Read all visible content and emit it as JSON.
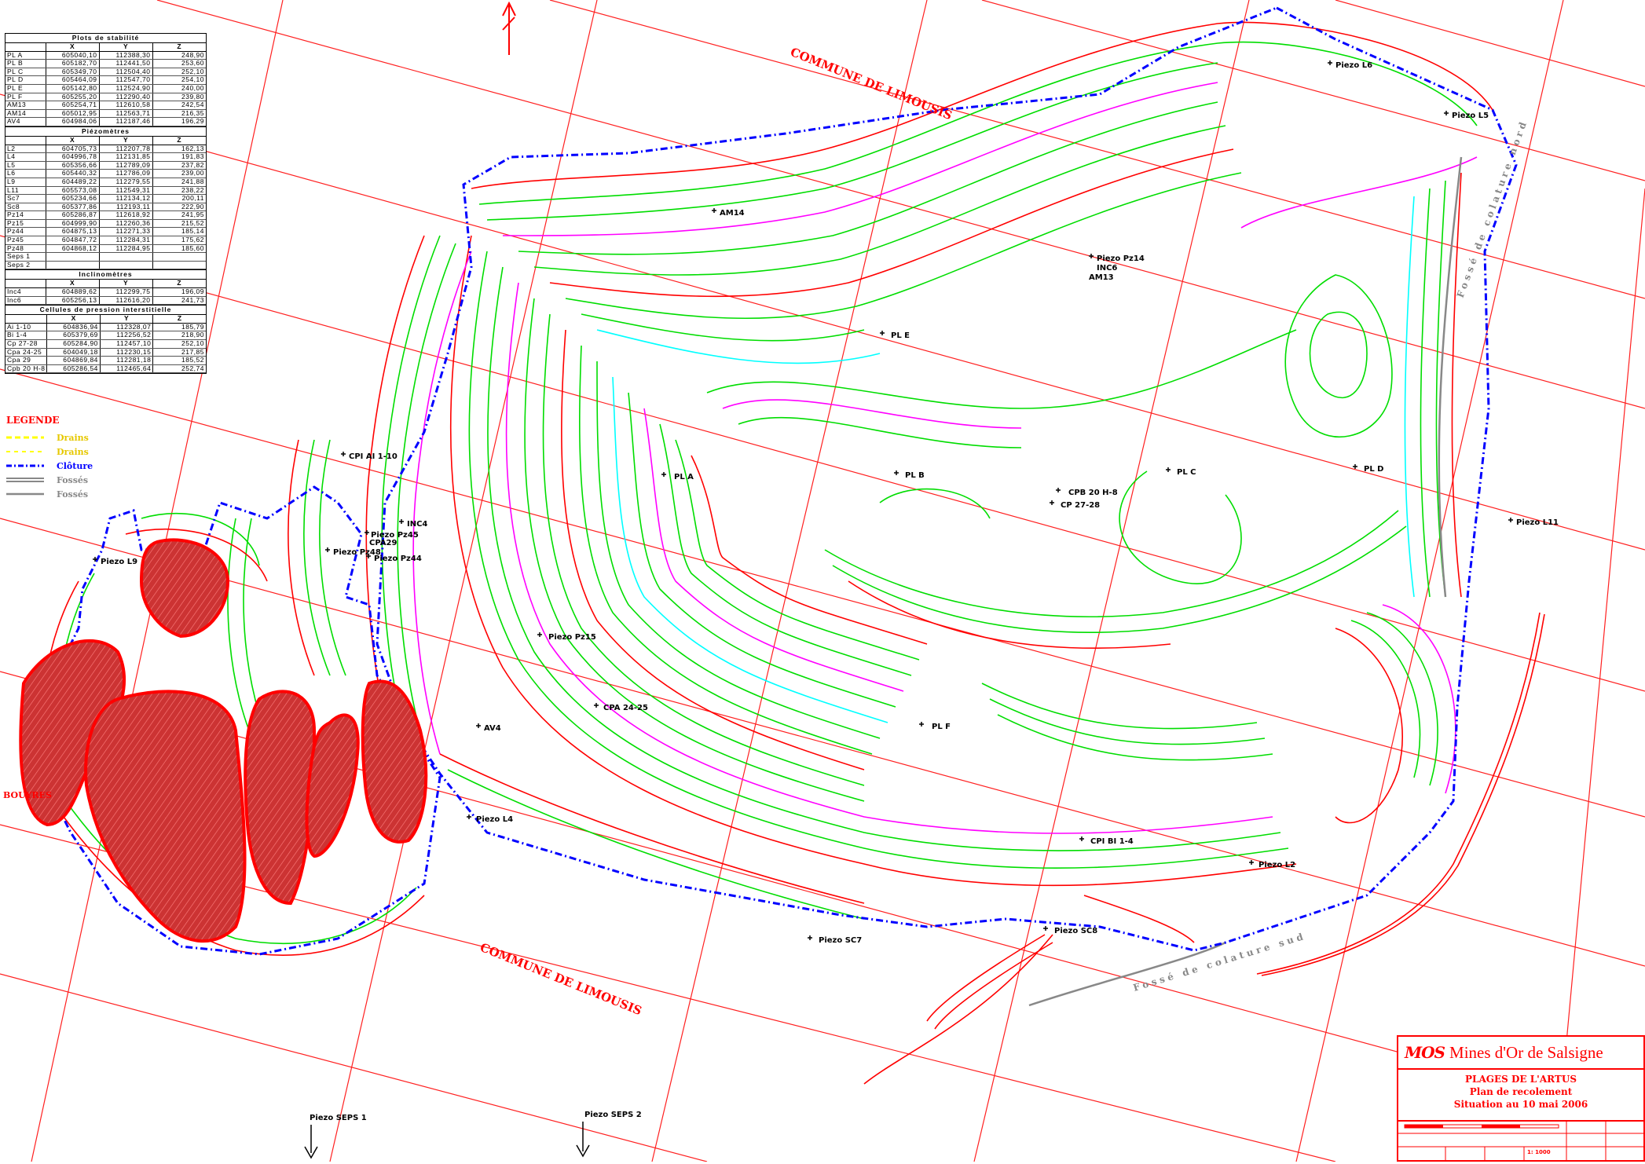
{
  "north_arrow": "N",
  "communes": [
    "COMMUNE DE LIMOUSIS",
    "COMMUNE DE LIMOUSIS"
  ],
  "place_name": "BOUYRES",
  "ditch_labels": [
    "Fossé de colature nord",
    "Fossé de colature sud"
  ],
  "tables": [
    {
      "title": "Plots de stabilité",
      "headers": [
        "",
        "X",
        "Y",
        "Z"
      ],
      "rows": [
        [
          "PL A",
          "605040,10",
          "112388,30",
          "248,90"
        ],
        [
          "PL B",
          "605182,70",
          "112441,50",
          "253,60"
        ],
        [
          "PL C",
          "605349,70",
          "112504,40",
          "252,10"
        ],
        [
          "PL D",
          "605464,09",
          "112547,70",
          "254,10"
        ],
        [
          "PL E",
          "605142,80",
          "112524,90",
          "240,00"
        ],
        [
          "PL F",
          "605255,20",
          "112290,40",
          "239,80"
        ],
        [
          "AM13",
          "605254,71",
          "112610,58",
          "242,54"
        ],
        [
          "AM14",
          "605012,95",
          "112563,71",
          "216,35"
        ],
        [
          "AV4",
          "604984,06",
          "112187,46",
          "196,29"
        ]
      ]
    },
    {
      "title": "Piézomètres",
      "headers": [
        "",
        "X",
        "Y",
        "Z"
      ],
      "rows": [
        [
          "L2",
          "604705,73",
          "112207,78",
          "162,13"
        ],
        [
          "L4",
          "604996,78",
          "112131,85",
          "191,83"
        ],
        [
          "L5",
          "605356,66",
          "112789,09",
          "237,82"
        ],
        [
          "L6",
          "605440,32",
          "112786,09",
          "239,00"
        ],
        [
          "L9",
          "604489,22",
          "112279,55",
          "241,88"
        ],
        [
          "L11",
          "605573,08",
          "112549,31",
          "238,22"
        ],
        [
          "Sc7",
          "605234,66",
          "112134,12",
          "200,11"
        ],
        [
          "Sc8",
          "605377,86",
          "112193,11",
          "222,90"
        ],
        [
          "Pz14",
          "605286,87",
          "112618,92",
          "241,95"
        ],
        [
          "Pz15",
          "604999,90",
          "112260,36",
          "215,52"
        ],
        [
          "Pz44",
          "604875,13",
          "112271,33",
          "185,14"
        ],
        [
          "Pz45",
          "604847,72",
          "112284,31",
          "175,62"
        ],
        [
          "Pz48",
          "604868,12",
          "112284,95",
          "185,60"
        ],
        [
          "Seps 1",
          "",
          "",
          ""
        ],
        [
          "Seps 2",
          "",
          "",
          ""
        ]
      ]
    },
    {
      "title": "Inclinomètres",
      "headers": [
        "",
        "X",
        "Y",
        "Z"
      ],
      "rows": [
        [
          "Inc4",
          "604889,62",
          "112299,75",
          "196,09"
        ],
        [
          "Inc6",
          "605256,13",
          "112616,20",
          "241,73"
        ]
      ]
    },
    {
      "title": "Cellules de pression interstitielle",
      "headers": [
        "",
        "X",
        "Y",
        "Z"
      ],
      "rows": [
        [
          "Ai 1-10",
          "604836,94",
          "112328,07",
          "185,79"
        ],
        [
          "Bi 1-4",
          "605379,69",
          "112256,52",
          "218,90"
        ],
        [
          "Cp 27-28",
          "605284,90",
          "112457,10",
          "252,10"
        ],
        [
          "Cpa 24-25",
          "604049,18",
          "112230,15",
          "217,85"
        ],
        [
          "Cpa 29",
          "604869,84",
          "112281,18",
          "185,52"
        ],
        [
          "Cpb 20 H-8",
          "605286,54",
          "112465,64",
          "252,74"
        ]
      ]
    }
  ],
  "legend": {
    "title": "LEGENDE",
    "items": [
      {
        "label": "Drains",
        "color": "#ffff00",
        "style": "dashed"
      },
      {
        "label": "Drains",
        "color": "#ffff00",
        "style": "dashed-thin"
      },
      {
        "label": "Clôture",
        "color": "#0000ff",
        "style": "dash-dot"
      },
      {
        "label": "Fossés",
        "color": "#888888",
        "style": "double"
      },
      {
        "label": "Fossés",
        "color": "#888888",
        "style": "single"
      }
    ]
  },
  "map_labels": [
    "Piezo L6",
    "Piezo L5",
    "AM14",
    "Piezo Pz14",
    "INC6",
    "AM13",
    "PL E",
    "CPI AI 1-10",
    "Piezo L9",
    "Piezo Pz45",
    "INC4",
    "CPA29",
    "Piezo Pz48",
    "Piezo Pz44",
    "PL A",
    "PL B",
    "PL C",
    "PL D",
    "CPB 20 H-8",
    "CP 27-28",
    "Piezo L11",
    "Piezo Pz15",
    "CPA 24-25",
    "AV4",
    "PL F",
    "Piezo L4",
    "CPI BI 1-4",
    "Piezo L2",
    "Piezo SC8",
    "Piezo SC7",
    "Piezo SEPS 1",
    "Piezo SEPS 2"
  ],
  "title_block": {
    "logo": "MOS",
    "company": "Mines d'Or de Salsigne",
    "lines": [
      "PLAGES DE L'ARTUS",
      "Plan de recolement",
      "Situation au 10 mai 2006"
    ],
    "scale": "1: 1000"
  }
}
